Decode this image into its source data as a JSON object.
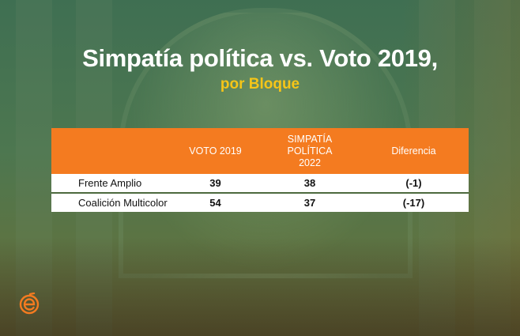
{
  "title": "Simpatía política vs. Voto 2019,",
  "subtitle": "por Bloque",
  "table": {
    "headers": {
      "name": "",
      "voto_2019": "VOTO 2019",
      "simpatia_line1": "SIMPATÍA",
      "simpatia_line2": "POLÍTICA",
      "simpatia_line3": "2022",
      "diferencia": "Diferencia"
    },
    "rows": [
      {
        "name": "Frente Amplio",
        "voto_2019": "39",
        "simpatia": "38",
        "diferencia": "(-1)"
      },
      {
        "name": "Coalición Multicolor",
        "voto_2019": "54",
        "simpatia": "37",
        "diferencia": "(-17)"
      }
    ]
  },
  "colors": {
    "header_bg": "#f47b20",
    "subtitle": "#f5c518",
    "logo": "#f47b20"
  },
  "logo_icon": "e-logo-icon"
}
